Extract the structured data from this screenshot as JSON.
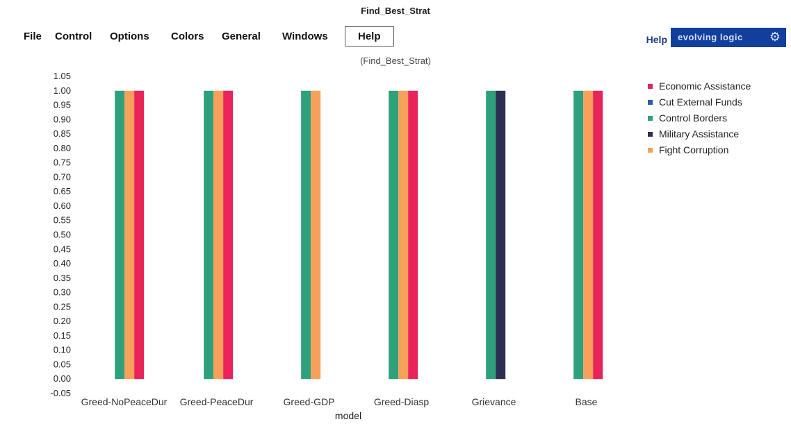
{
  "window": {
    "title": "Find_Best_Strat"
  },
  "menu": {
    "file": "File",
    "control": "Control",
    "options": "Options",
    "colors": "Colors",
    "general": "General",
    "windows": "Windows",
    "help": "Help"
  },
  "toolbar": {
    "help_label": "Help",
    "brand": "evolving logic",
    "brand_icon": "gear-icon"
  },
  "chart_data": {
    "type": "bar",
    "title": "(Find_Best_Strat)",
    "xlabel": "model",
    "ylabel": "",
    "ylim": [
      -0.05,
      1.05
    ],
    "yticks": [
      "1.05",
      "1.00",
      "0.95",
      "0.90",
      "0.85",
      "0.80",
      "0.75",
      "0.70",
      "0.65",
      "0.60",
      "0.55",
      "0.50",
      "0.45",
      "0.40",
      "0.35",
      "0.30",
      "0.25",
      "0.20",
      "0.15",
      "0.10",
      "0.05",
      "0.00",
      "-0.05"
    ],
    "categories": [
      "Greed-NoPeaceDur",
      "Greed-PeaceDur",
      "Greed-GDP",
      "Greed-Diasp",
      "Grievance",
      "Base"
    ],
    "legend_position": "top-right",
    "grid": false,
    "series": [
      {
        "name": "Economic Assistance",
        "color": "#e8245a",
        "values": [
          1,
          1,
          0,
          1,
          0,
          1
        ]
      },
      {
        "name": "Cut External Funds",
        "color": "#2a5db0",
        "values": [
          0,
          0,
          0,
          0,
          0,
          0
        ]
      },
      {
        "name": "Control Borders",
        "color": "#2ea07c",
        "values": [
          1,
          1,
          1,
          1,
          1,
          1
        ]
      },
      {
        "name": "Military Assistance",
        "color": "#2b2f52",
        "values": [
          0,
          0,
          0,
          0,
          1,
          0
        ]
      },
      {
        "name": "Fight Corruption",
        "color": "#f7a05a",
        "values": [
          1,
          1,
          1,
          1,
          0,
          1
        ]
      }
    ]
  }
}
